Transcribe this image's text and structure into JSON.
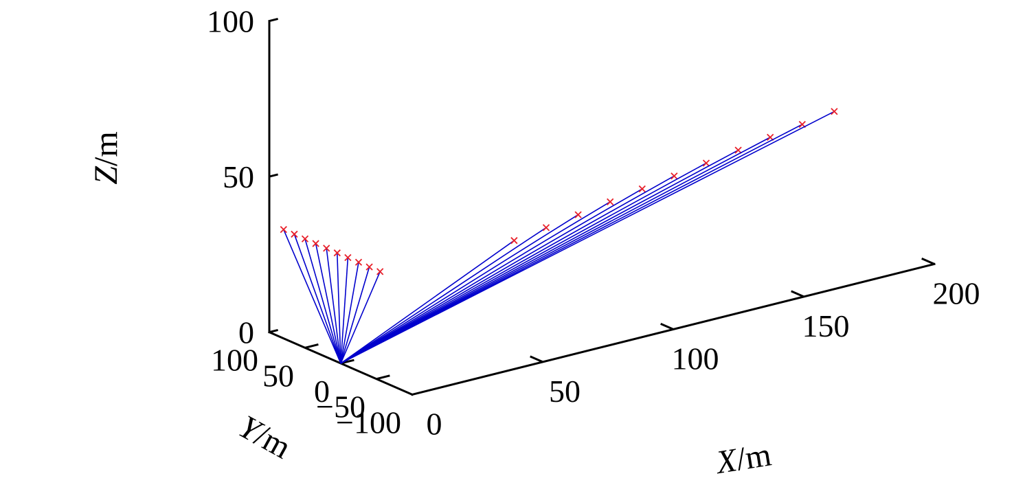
{
  "chart_data": {
    "type": "line",
    "projection": "3d",
    "title": "",
    "axes": {
      "x": {
        "var": "X",
        "unit": "/m",
        "range": [
          0,
          200
        ],
        "ticks": [
          0,
          50,
          100,
          150,
          200
        ],
        "tick_labels": [
          "0",
          "50",
          "100",
          "150",
          "200"
        ]
      },
      "y": {
        "var": "Y",
        "unit": "/m",
        "range": [
          -100,
          100
        ],
        "ticks": [
          -100,
          -50,
          0,
          50,
          100
        ],
        "tick_labels": [
          "−100",
          "−50",
          "0",
          "50",
          "100"
        ]
      },
      "z": {
        "var": "Z",
        "unit": "/m",
        "range": [
          0,
          100
        ],
        "ticks": [
          0,
          50,
          100
        ],
        "tick_labels": [
          "0",
          "50",
          "100"
        ]
      }
    },
    "grid": false,
    "origin": {
      "x": 0,
      "y": 0,
      "z": 0
    },
    "series": [
      {
        "kind": "rays from origin",
        "endpoints": [
          {
            "x": 0,
            "y": 80,
            "z": 35
          },
          {
            "x": 0,
            "y": 65,
            "z": 35
          },
          {
            "x": 0,
            "y": 50,
            "z": 35
          },
          {
            "x": 0,
            "y": 35,
            "z": 35
          },
          {
            "x": 0,
            "y": 20,
            "z": 35
          },
          {
            "x": 0,
            "y": 5,
            "z": 35
          },
          {
            "x": 0,
            "y": -10,
            "z": 35
          },
          {
            "x": 0,
            "y": -25,
            "z": 35
          },
          {
            "x": 0,
            "y": -40,
            "z": 35
          },
          {
            "x": 0,
            "y": -55,
            "z": 35
          },
          {
            "x": 50,
            "y": -60,
            "z": 35
          },
          {
            "x": 65,
            "y": -50,
            "z": 35
          },
          {
            "x": 80,
            "y": -40,
            "z": 35
          },
          {
            "x": 95,
            "y": -30,
            "z": 35
          },
          {
            "x": 110,
            "y": -20,
            "z": 35
          },
          {
            "x": 125,
            "y": -10,
            "z": 35
          },
          {
            "x": 140,
            "y": 0,
            "z": 35
          },
          {
            "x": 155,
            "y": 10,
            "z": 35
          },
          {
            "x": 170,
            "y": 20,
            "z": 35
          },
          {
            "x": 185,
            "y": 30,
            "z": 35
          },
          {
            "x": 200,
            "y": 40,
            "z": 35
          }
        ]
      }
    ],
    "colors": {
      "ray": "#0000cc",
      "marker": "#e8202a",
      "axis": "#000000"
    },
    "marker": "x"
  }
}
